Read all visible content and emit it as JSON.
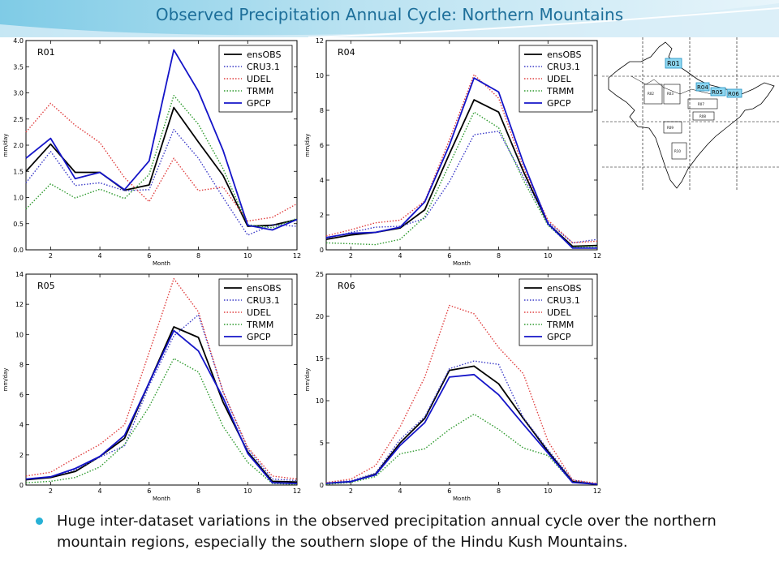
{
  "slide": {
    "title": "Observed Precipitation Annual Cycle: Northern Mountains",
    "bullet": "Huge inter-dataset variations in the observed precipitation annual cycle over the northern mountain regions, especially the southern slope of the Hindu Kush Mountains."
  },
  "map": {
    "labels": [
      "R01",
      "R04",
      "R05",
      "R06"
    ],
    "box_labels": [
      "R02",
      "R03",
      "R07",
      "R08",
      "R09",
      "R10"
    ]
  },
  "colors": {
    "ensOBS": "#000000",
    "CRU3.1": "#3b3bc8",
    "UDEL": "#e04040",
    "TRMM": "#2e9a2e",
    "GPCP": "#1414c8",
    "title": "#1d6f9a",
    "accent": "#27b1d6"
  },
  "chart_data": [
    {
      "type": "line",
      "panel_label": "R01",
      "xlabel": "Month",
      "ylabel": "mm/day",
      "xlim": [
        1,
        12
      ],
      "ylim": [
        0,
        4
      ],
      "xticks": [
        2,
        4,
        6,
        8,
        10,
        12
      ],
      "yticks": [
        "0.0",
        "0.5",
        "1.0",
        "1.5",
        "2.0",
        "2.5",
        "3.0",
        "3.5",
        "4.0"
      ],
      "x": [
        1,
        2,
        3,
        4,
        5,
        6,
        7,
        8,
        9,
        10,
        11,
        12
      ],
      "legend_placement": "top-right",
      "series": [
        {
          "name": "ensOBS",
          "style": "solid",
          "values": [
            1.5,
            2.02,
            1.48,
            1.48,
            1.14,
            1.24,
            2.72,
            2.06,
            1.42,
            0.45,
            0.47,
            0.58
          ]
        },
        {
          "name": "CRU3.1",
          "style": "dotted",
          "values": [
            1.28,
            1.88,
            1.23,
            1.28,
            1.13,
            1.15,
            2.3,
            1.75,
            1.0,
            0.28,
            0.48,
            0.45
          ]
        },
        {
          "name": "UDEL",
          "style": "dotted",
          "values": [
            2.25,
            2.8,
            2.38,
            2.05,
            1.38,
            0.92,
            1.75,
            1.13,
            1.2,
            0.55,
            0.62,
            0.88
          ]
        },
        {
          "name": "TRMM",
          "style": "dotted",
          "values": [
            0.78,
            1.26,
            0.99,
            1.16,
            0.98,
            1.44,
            2.95,
            2.4,
            1.55,
            0.48,
            0.42,
            0.6
          ]
        },
        {
          "name": "GPCP",
          "style": "solid",
          "values": [
            1.75,
            2.13,
            1.36,
            1.48,
            1.15,
            1.7,
            3.82,
            3.03,
            1.9,
            0.47,
            0.38,
            0.58
          ]
        }
      ]
    },
    {
      "type": "line",
      "panel_label": "R04",
      "xlabel": "Month",
      "ylabel": "mm/day",
      "xlim": [
        1,
        12
      ],
      "ylim": [
        0,
        12
      ],
      "xticks": [
        2,
        4,
        6,
        8,
        10,
        12
      ],
      "yticks": [
        "0",
        "2",
        "4",
        "6",
        "8",
        "10",
        "12"
      ],
      "x": [
        1,
        2,
        3,
        4,
        5,
        6,
        7,
        8,
        9,
        10,
        11,
        12
      ],
      "legend_placement": "top-right",
      "series": [
        {
          "name": "ensOBS",
          "style": "solid",
          "values": [
            0.6,
            0.85,
            1.0,
            1.25,
            2.3,
            5.5,
            8.6,
            7.9,
            4.5,
            1.5,
            0.2,
            0.25
          ]
        },
        {
          "name": "CRU3.1",
          "style": "dotted",
          "values": [
            0.65,
            1.0,
            1.3,
            1.35,
            1.8,
            3.9,
            6.6,
            6.8,
            4.2,
            1.6,
            0.4,
            0.6
          ]
        },
        {
          "name": "UDEL",
          "style": "dotted",
          "values": [
            0.8,
            1.15,
            1.55,
            1.7,
            2.8,
            6.3,
            10.05,
            8.7,
            4.7,
            1.7,
            0.4,
            0.5
          ]
        },
        {
          "name": "TRMM",
          "style": "dotted",
          "values": [
            0.4,
            0.35,
            0.3,
            0.6,
            1.9,
            4.9,
            7.9,
            7.0,
            4.0,
            1.4,
            0.15,
            0.2
          ]
        },
        {
          "name": "GPCP",
          "style": "solid",
          "values": [
            0.7,
            0.95,
            1.0,
            1.3,
            2.75,
            6.0,
            9.85,
            9.05,
            5.0,
            1.5,
            0.1,
            0.1
          ]
        }
      ]
    },
    {
      "type": "line",
      "panel_label": "R05",
      "xlabel": "Month",
      "ylabel": "mm/day",
      "xlim": [
        1,
        12
      ],
      "ylim": [
        0,
        14
      ],
      "xticks": [
        2,
        4,
        6,
        8,
        10,
        12
      ],
      "yticks": [
        "0",
        "2",
        "4",
        "6",
        "8",
        "10",
        "12",
        "14"
      ],
      "x": [
        1,
        2,
        3,
        4,
        5,
        6,
        7,
        8,
        9,
        10,
        11,
        12
      ],
      "legend_placement": "top-right",
      "series": [
        {
          "name": "ensOBS",
          "style": "solid",
          "values": [
            0.35,
            0.5,
            0.9,
            1.9,
            3.1,
            6.8,
            10.5,
            9.8,
            5.5,
            2.2,
            0.25,
            0.2
          ]
        },
        {
          "name": "CRU3.1",
          "style": "dotted",
          "values": [
            0.4,
            0.55,
            1.0,
            1.85,
            2.6,
            6.6,
            9.9,
            11.3,
            6.2,
            2.4,
            0.4,
            0.3
          ]
        },
        {
          "name": "UDEL",
          "style": "dotted",
          "values": [
            0.6,
            0.85,
            1.8,
            2.7,
            4.0,
            8.8,
            13.7,
            11.5,
            6.2,
            2.5,
            0.6,
            0.4
          ]
        },
        {
          "name": "TRMM",
          "style": "dotted",
          "values": [
            0.15,
            0.25,
            0.5,
            1.2,
            2.7,
            5.2,
            8.4,
            7.5,
            3.9,
            1.5,
            0.1,
            0.05
          ]
        },
        {
          "name": "GPCP",
          "style": "solid",
          "values": [
            0.4,
            0.55,
            1.1,
            1.9,
            3.3,
            6.8,
            10.25,
            8.9,
            5.8,
            2.1,
            0.15,
            0.1
          ]
        }
      ]
    },
    {
      "type": "line",
      "panel_label": "R06",
      "xlabel": "Month",
      "ylabel": "mm/day",
      "xlim": [
        1,
        12
      ],
      "ylim": [
        0,
        25
      ],
      "xticks": [
        2,
        4,
        6,
        8,
        10,
        12
      ],
      "yticks": [
        "0",
        "5",
        "10",
        "15",
        "20",
        "25"
      ],
      "x": [
        1,
        2,
        3,
        4,
        5,
        6,
        7,
        8,
        9,
        10,
        11,
        12
      ],
      "legend_placement": "top-right",
      "series": [
        {
          "name": "ensOBS",
          "style": "solid",
          "values": [
            0.2,
            0.4,
            1.3,
            5.0,
            7.9,
            13.6,
            14.1,
            12.0,
            7.9,
            4.0,
            0.4,
            0.1
          ]
        },
        {
          "name": "CRU3.1",
          "style": "dotted",
          "values": [
            0.3,
            0.5,
            1.4,
            5.4,
            8.1,
            13.8,
            14.7,
            14.3,
            8.0,
            4.2,
            0.6,
            0.1
          ]
        },
        {
          "name": "UDEL",
          "style": "dotted",
          "values": [
            0.3,
            0.7,
            2.3,
            6.9,
            12.8,
            21.3,
            20.3,
            16.3,
            13.2,
            5.2,
            0.6,
            0.2
          ]
        },
        {
          "name": "TRMM",
          "style": "dotted",
          "values": [
            0.1,
            0.3,
            1.0,
            3.7,
            4.3,
            6.6,
            8.4,
            6.6,
            4.4,
            3.5,
            0.3,
            0.1
          ]
        },
        {
          "name": "GPCP",
          "style": "solid",
          "values": [
            0.2,
            0.4,
            1.2,
            4.7,
            7.4,
            12.8,
            13.1,
            10.7,
            7.2,
            3.8,
            0.3,
            0.1
          ]
        }
      ]
    }
  ]
}
